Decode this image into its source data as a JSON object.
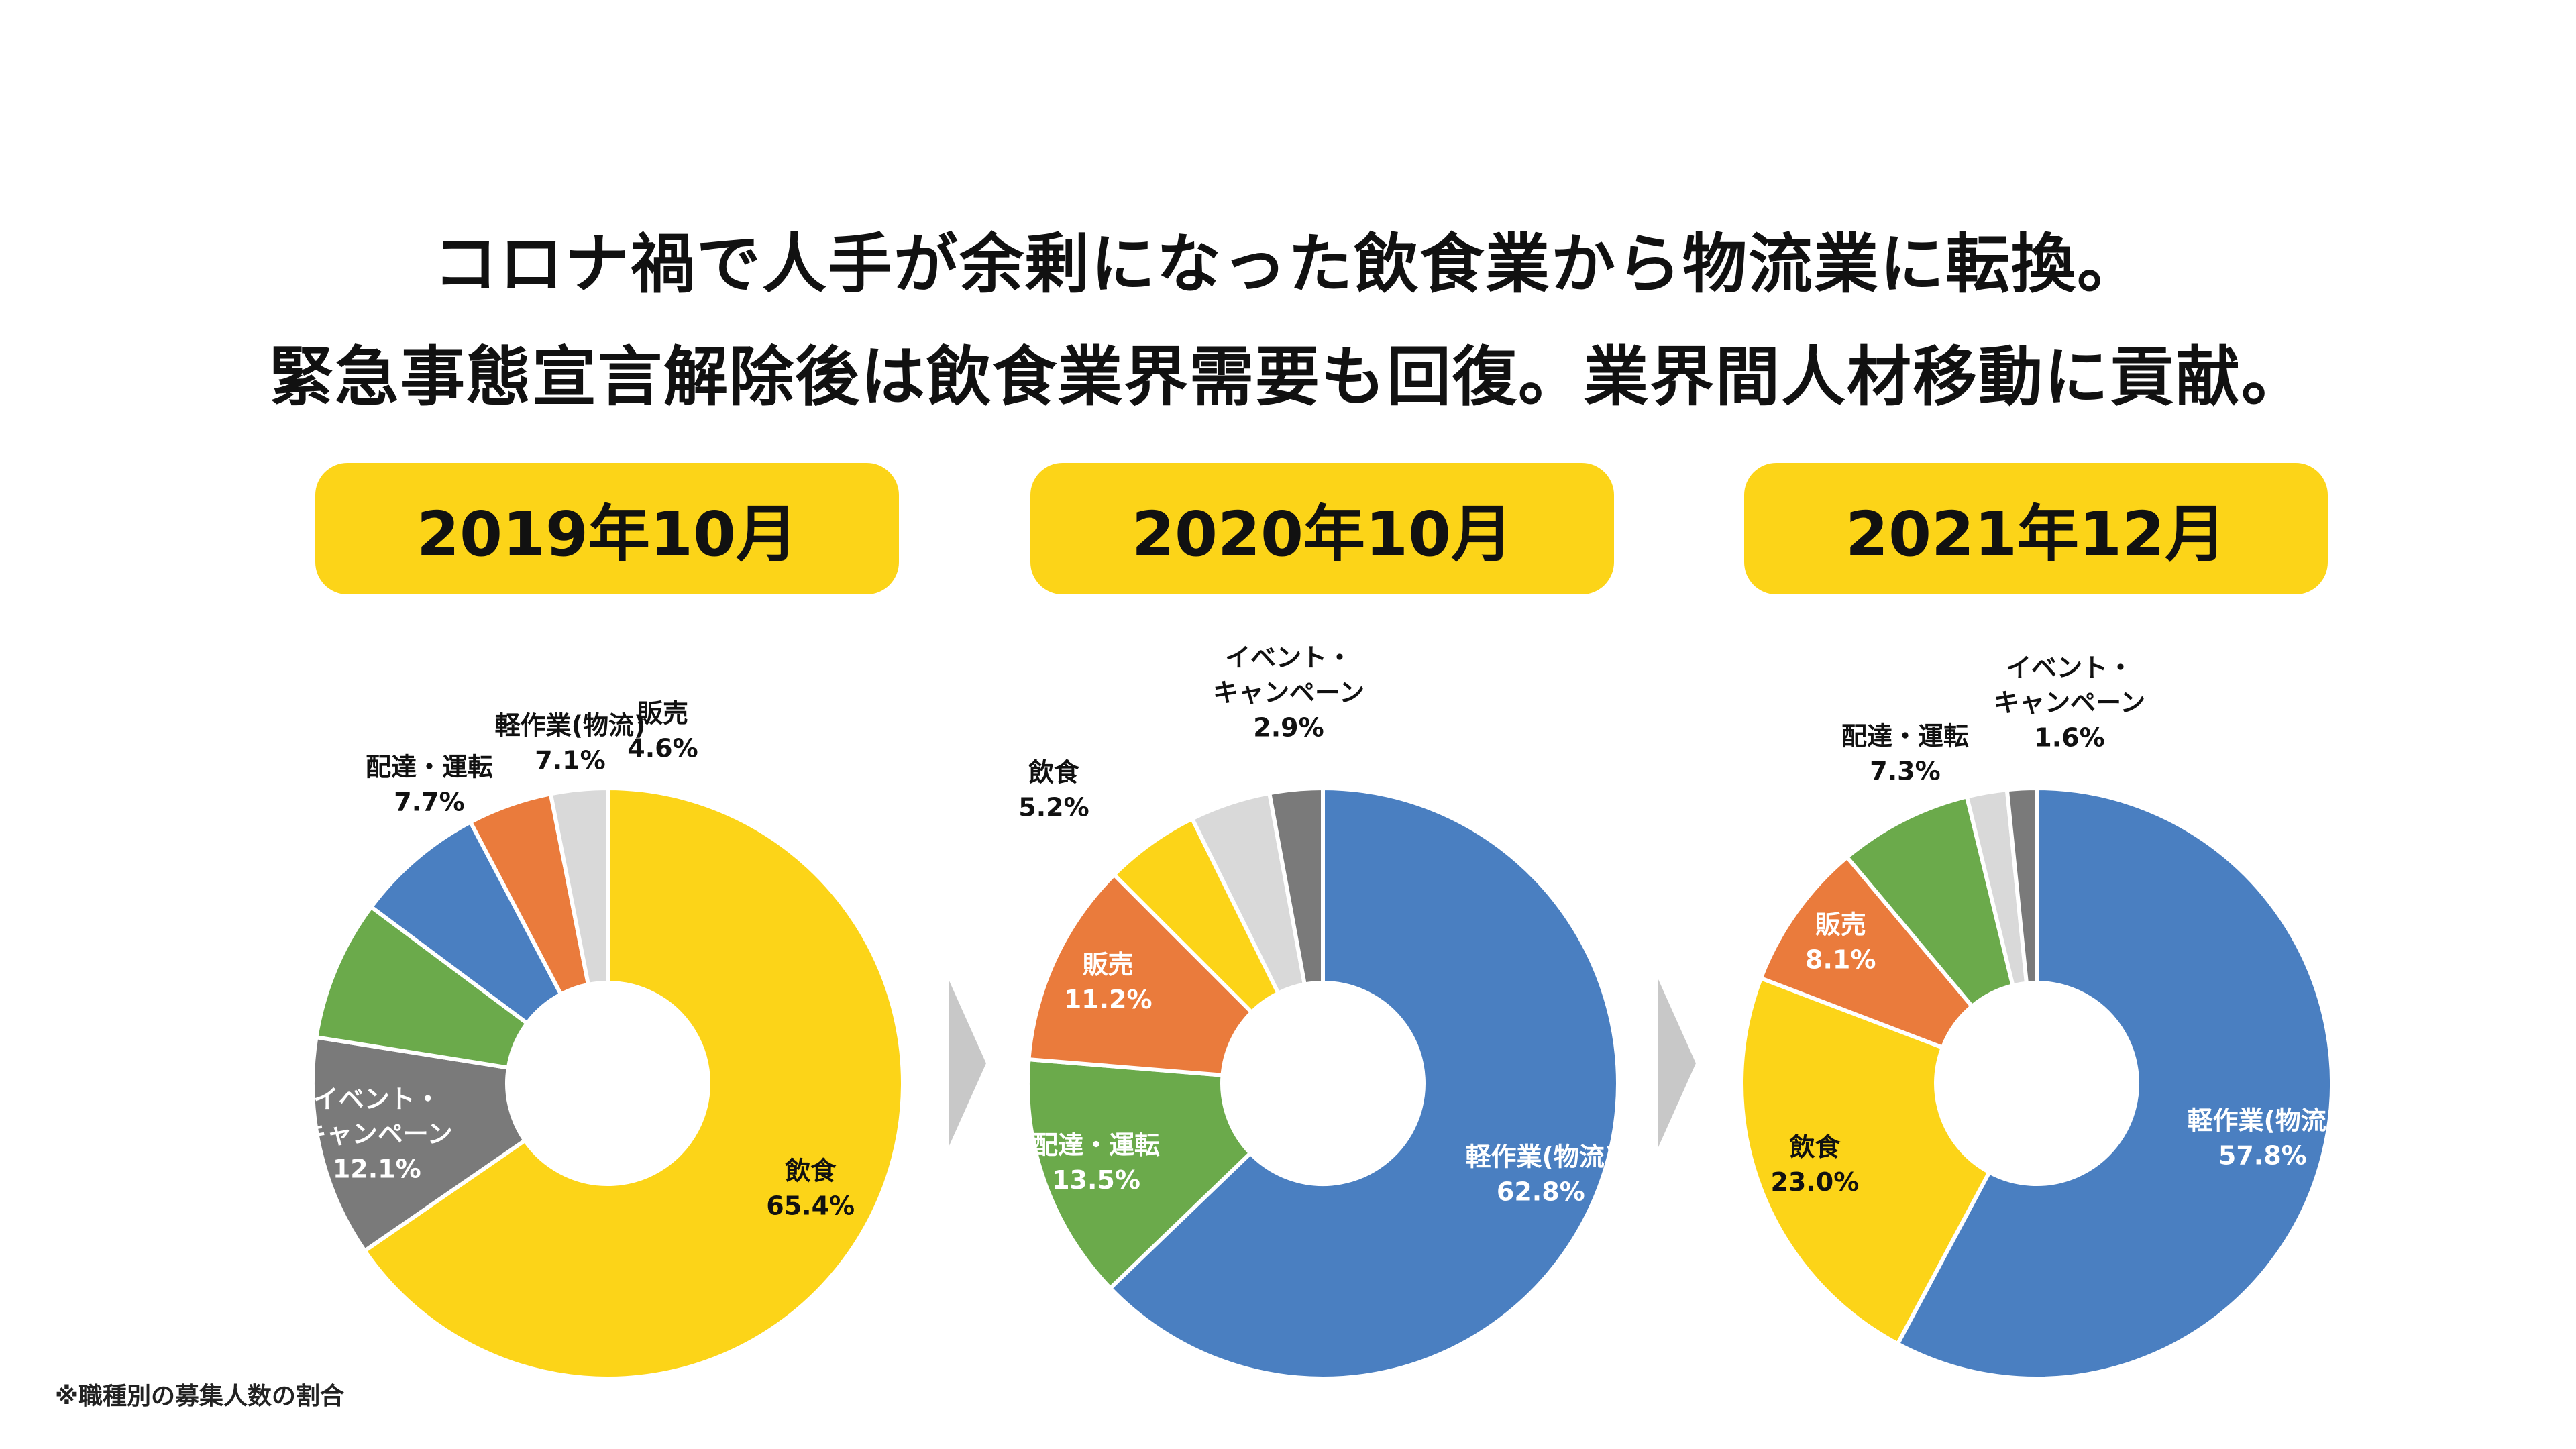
{
  "title": {
    "line1": "コロナ禍で人手が余剰になった飲食業から物流業に転換。",
    "line2": "緊急事態宣言解除後は飲食業界需要も回復。業界間人材移動に貢献。"
  },
  "footnote": "※職種別の募集人数の割合",
  "colors": {
    "pill": "#FCD418",
    "yellow": "#FCD418",
    "blue": "#4A7FC1",
    "green": "#6BAA4B",
    "orange": "#EA7B3C",
    "darkgray": "#7A7A7A",
    "lightgray": "#D9D9D9",
    "arrow": "#C8C8C8"
  },
  "icons": {
    "arrow": "chevron-right-icon"
  },
  "chart_data": [
    {
      "type": "pie",
      "title": "2019年10月",
      "slices": [
        {
          "name": "飲食",
          "value": 65.4,
          "color": "#FCD418",
          "label": "飲食",
          "value_label": "65.4%",
          "inside": true
        },
        {
          "name": "イベント・キャンペーン",
          "value": 12.1,
          "color": "#7A7A7A",
          "label": "イベント・\nキャンペーン",
          "value_label": "12.1%",
          "inside": true
        },
        {
          "name": "配達・運転",
          "value": 7.7,
          "color": "#6BAA4B",
          "label": "配達・運転",
          "value_label": "7.7%",
          "inside": false
        },
        {
          "name": "軽作業(物流)",
          "value": 7.1,
          "color": "#4A7FC1",
          "label": "軽作業(物流)",
          "value_label": "7.1%",
          "inside": false
        },
        {
          "name": "販売",
          "value": 4.6,
          "color": "#EA7B3C",
          "label": "販売",
          "value_label": "4.6%",
          "inside": false
        },
        {
          "name": "",
          "value": 3.1,
          "color": "#D9D9D9",
          "label": "",
          "value_label": "",
          "inside": false
        }
      ]
    },
    {
      "type": "pie",
      "title": "2020年10月",
      "slices": [
        {
          "name": "軽作業(物流)",
          "value": 62.8,
          "color": "#4A7FC1",
          "label": "軽作業(物流)",
          "value_label": "62.8%",
          "inside": true
        },
        {
          "name": "配達・運転",
          "value": 13.5,
          "color": "#6BAA4B",
          "label": "配達・運転",
          "value_label": "13.5%",
          "inside": true
        },
        {
          "name": "販売",
          "value": 11.2,
          "color": "#EA7B3C",
          "label": "販売",
          "value_label": "11.2%",
          "inside": true
        },
        {
          "name": "飲食",
          "value": 5.2,
          "color": "#FCD418",
          "label": "飲食",
          "value_label": "5.2%",
          "inside": false
        },
        {
          "name": "",
          "value": 4.4,
          "color": "#D9D9D9",
          "label": "",
          "value_label": "",
          "inside": false
        },
        {
          "name": "イベント・キャンペーン",
          "value": 2.9,
          "color": "#7A7A7A",
          "label": "イベント・\nキャンペーン",
          "value_label": "2.9%",
          "inside": false
        }
      ]
    },
    {
      "type": "pie",
      "title": "2021年12月",
      "slices": [
        {
          "name": "軽作業(物流)",
          "value": 57.8,
          "color": "#4A7FC1",
          "label": "軽作業(物流)",
          "value_label": "57.8%",
          "inside": true
        },
        {
          "name": "飲食",
          "value": 23.0,
          "color": "#FCD418",
          "label": "飲食",
          "value_label": "23.0%",
          "inside": true
        },
        {
          "name": "販売",
          "value": 8.1,
          "color": "#EA7B3C",
          "label": "販売",
          "value_label": "8.1%",
          "inside": true
        },
        {
          "name": "配達・運転",
          "value": 7.3,
          "color": "#6BAA4B",
          "label": "配達・運転",
          "value_label": "7.3%",
          "inside": false
        },
        {
          "name": "",
          "value": 2.2,
          "color": "#D9D9D9",
          "label": "",
          "value_label": "",
          "inside": false
        },
        {
          "name": "イベント・キャンペーン",
          "value": 1.6,
          "color": "#7A7A7A",
          "label": "イベント・\nキャンペーン",
          "value_label": "1.6%",
          "inside": false
        }
      ]
    }
  ]
}
